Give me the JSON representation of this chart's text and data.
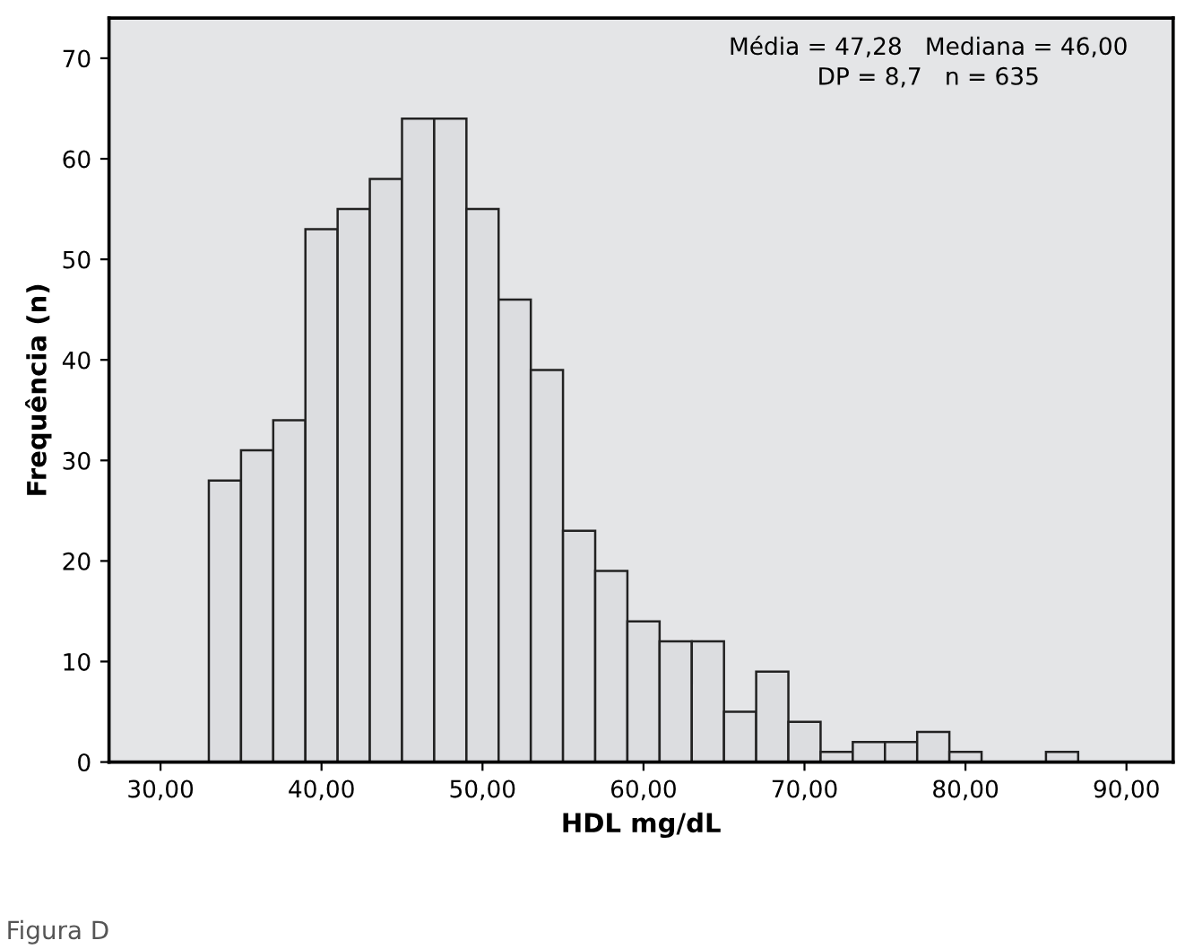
{
  "chart_data": {
    "type": "histogram",
    "xlabel": "HDL mg/dL",
    "ylabel": "Frequência (n)",
    "bins": [
      33,
      35,
      37,
      39,
      41,
      43,
      45,
      47,
      49,
      51,
      53,
      55,
      57,
      59,
      61,
      63,
      65,
      67,
      69,
      71,
      73,
      75,
      77,
      79,
      81,
      83,
      85,
      87
    ],
    "values": [
      28,
      31,
      34,
      53,
      55,
      58,
      64,
      64,
      55,
      46,
      39,
      23,
      19,
      14,
      12,
      12,
      5,
      9,
      4,
      1,
      2,
      2,
      3,
      1,
      0,
      0,
      1
    ],
    "color": "#dcdde0",
    "xlim": [
      26.8,
      92.9
    ],
    "xticks": [
      {
        "value": 30,
        "label": "30,00"
      },
      {
        "value": 40,
        "label": "40,00"
      },
      {
        "value": 50,
        "label": "50,00"
      },
      {
        "value": 60,
        "label": "60,00"
      },
      {
        "value": 70,
        "label": "70,00"
      },
      {
        "value": 80,
        "label": "80,00"
      },
      {
        "value": 90,
        "label": "90,00"
      }
    ],
    "ylim": [
      0,
      74
    ],
    "yticks": [
      0,
      10,
      20,
      30,
      40,
      50,
      60,
      70
    ],
    "grid": false,
    "annotations": [
      "Média = 47,28   Mediana = 46,00\nDP = 8,7   n = 635",
      "Figura D"
    ]
  }
}
